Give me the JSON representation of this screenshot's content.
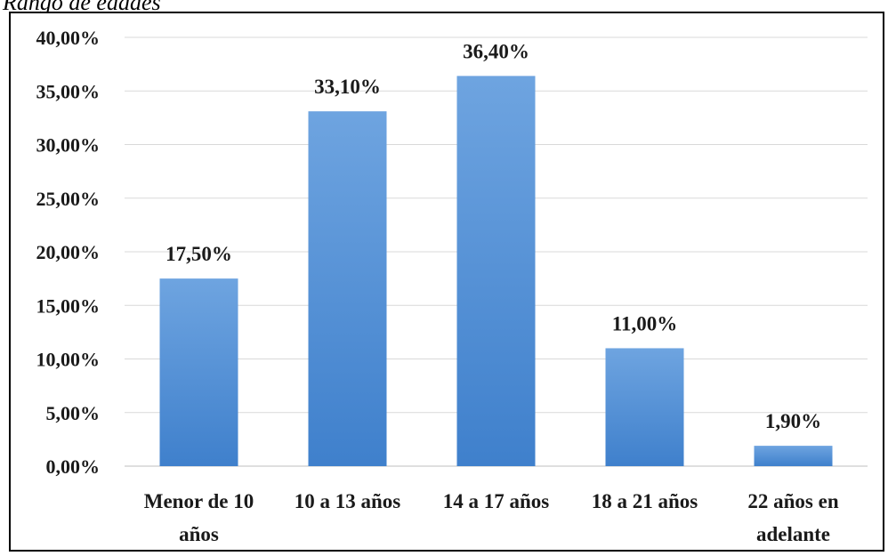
{
  "caption": "Rango de edades",
  "chart_data": {
    "type": "bar",
    "title": "",
    "xlabel": "",
    "ylabel": "",
    "categories": [
      [
        "Menor de 10",
        "años"
      ],
      [
        "10 a 13 años"
      ],
      [
        "14 a 17 años"
      ],
      [
        "18 a 21 años"
      ],
      [
        "22 años en",
        "adelante"
      ]
    ],
    "values": [
      17.5,
      33.1,
      36.4,
      11.0,
      1.9
    ],
    "data_labels": [
      "17,50%",
      "33,10%",
      "36,40%",
      "11,00%",
      "1,90%"
    ],
    "y_ticks": [
      0,
      5,
      10,
      15,
      20,
      25,
      30,
      35,
      40
    ],
    "y_tick_labels": [
      "0,00%",
      "5,00%",
      "10,00%",
      "15,00%",
      "20,00%",
      "25,00%",
      "30,00%",
      "35,00%",
      "40,00%"
    ],
    "ylim": [
      0,
      40
    ],
    "grid": true,
    "legend": "none",
    "bar_color": "#4f8fd6"
  }
}
